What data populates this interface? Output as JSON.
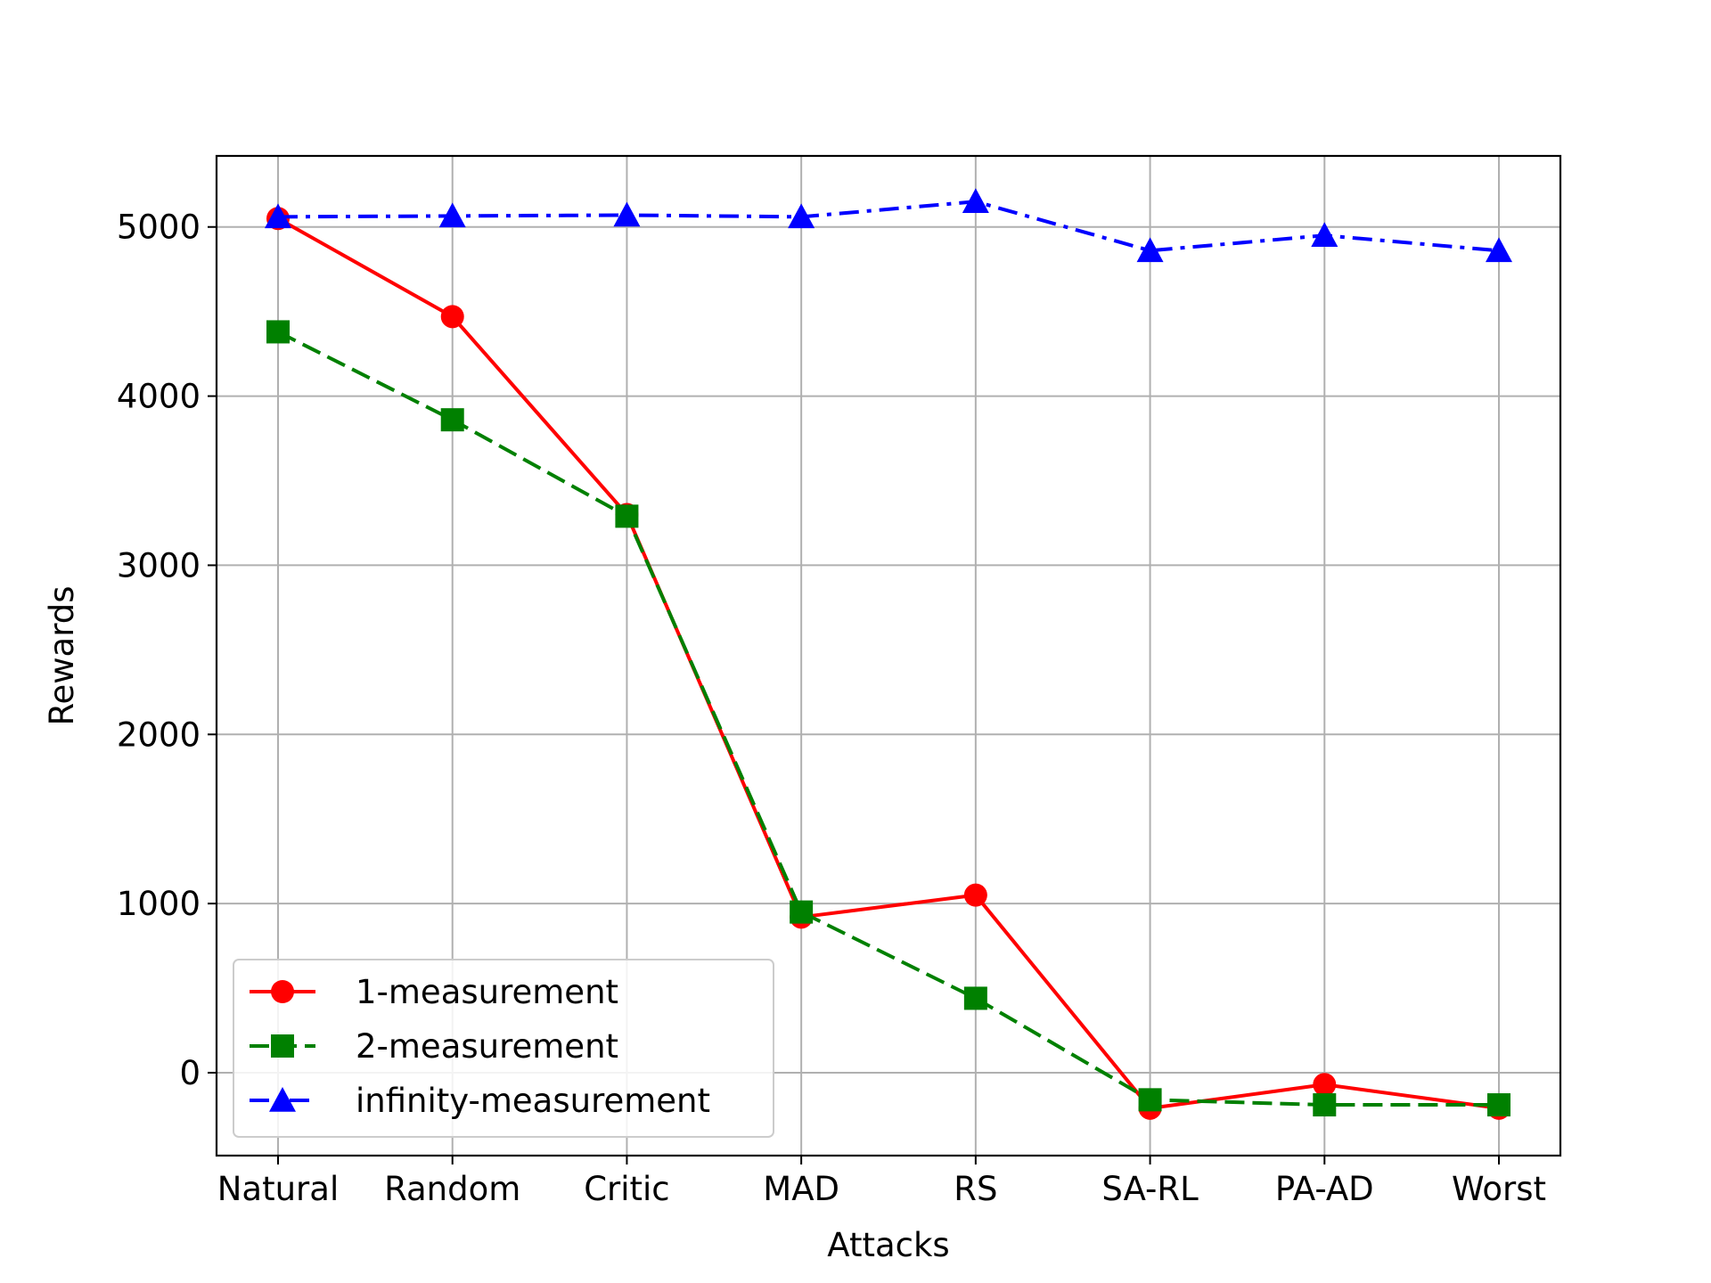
{
  "chart_data": {
    "type": "line",
    "title": "",
    "xlabel": "Attacks",
    "ylabel": "Rewards",
    "categories": [
      "Natural",
      "Random",
      "Critic",
      "MAD",
      "RS",
      "SA-RL",
      "PA-AD",
      "Worst"
    ],
    "ylim": [
      -490,
      5420
    ],
    "yticks": [
      0,
      1000,
      2000,
      3000,
      4000,
      5000
    ],
    "grid": true,
    "legend_position": "lower-left",
    "series": [
      {
        "name": "1-measurement",
        "color": "#ff0000",
        "linestyle": "solid",
        "marker": "circle",
        "values": [
          5050,
          4470,
          3300,
          920,
          1050,
          -210,
          -70,
          -210
        ]
      },
      {
        "name": "2-measurement",
        "color": "#008000",
        "linestyle": "dashed",
        "marker": "square",
        "values": [
          4380,
          3860,
          3290,
          950,
          440,
          -160,
          -190,
          -190
        ]
      },
      {
        "name": "infinity-measurement",
        "color": "#0000ff",
        "linestyle": "dashdot",
        "marker": "triangle",
        "values": [
          5060,
          5065,
          5070,
          5060,
          5150,
          4860,
          4950,
          4860
        ]
      }
    ]
  }
}
